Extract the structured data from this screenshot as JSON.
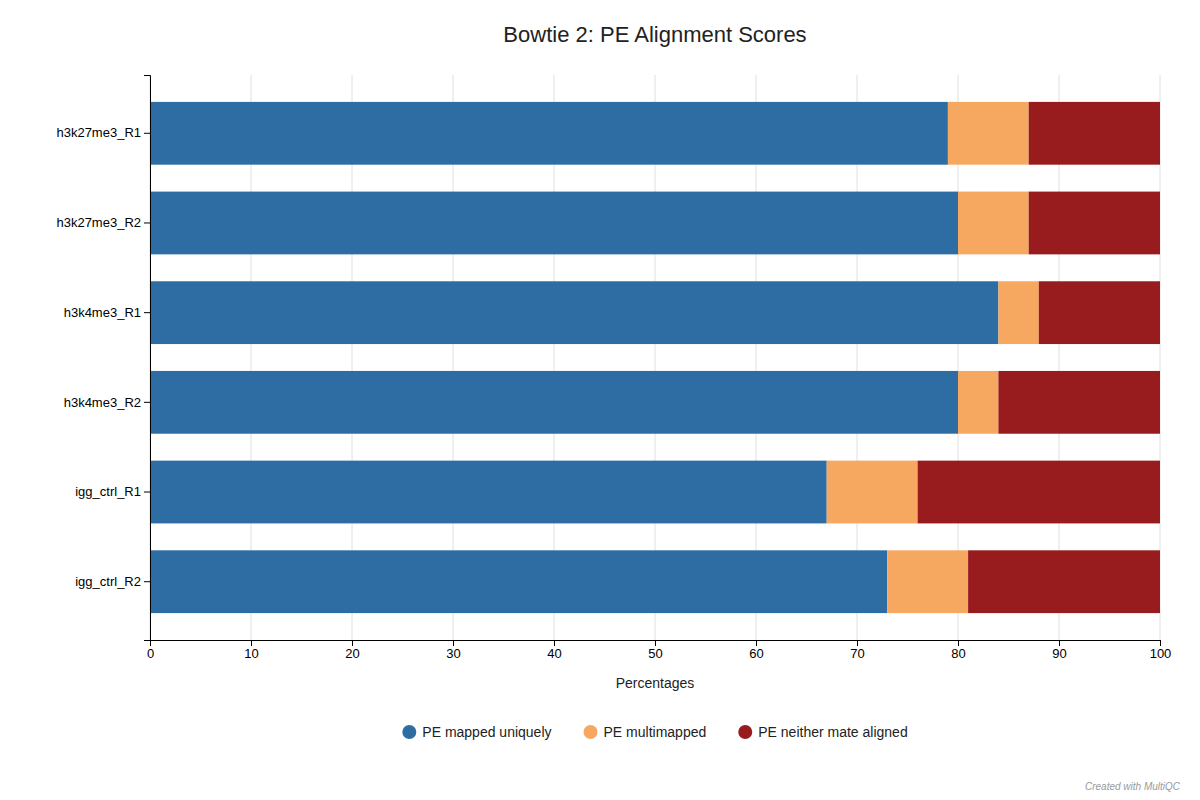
{
  "chart_data": {
    "type": "bar",
    "orientation": "horizontal",
    "stacked": true,
    "title": "Bowtie 2: PE Alignment Scores",
    "categories": [
      "h3k27me3_R1",
      "h3k27me3_R2",
      "h3k4me3_R1",
      "h3k4me3_R2",
      "igg_ctrl_R1",
      "igg_ctrl_R2"
    ],
    "series": [
      {
        "name": "PE mapped uniquely",
        "color": "#2e6da4",
        "values": [
          79.0,
          80.0,
          84.0,
          80.0,
          67.0,
          73.0
        ]
      },
      {
        "name": "PE multimapped",
        "color": "#f7a860",
        "values": [
          8.0,
          7.0,
          4.0,
          4.0,
          9.0,
          8.0
        ]
      },
      {
        "name": "PE neither mate aligned",
        "color": "#981b1e",
        "values": [
          13.0,
          13.0,
          12.0,
          16.0,
          24.0,
          19.0
        ]
      }
    ],
    "xlabel": "Percentages",
    "xlim": [
      0,
      100
    ],
    "xticks": [
      0,
      10,
      20,
      30,
      40,
      50,
      60,
      70,
      80,
      90,
      100
    ],
    "grid": true,
    "legend": "bottom",
    "annotations": [
      "Created with MultiQC"
    ]
  }
}
